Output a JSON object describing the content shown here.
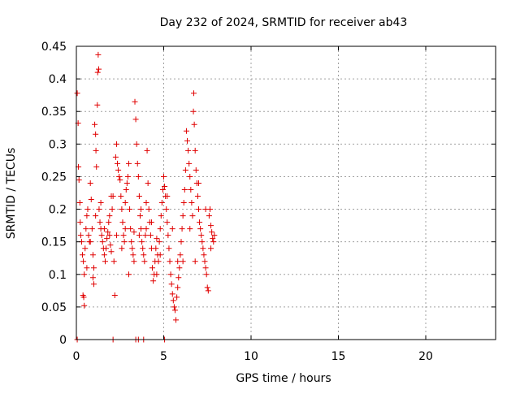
{
  "chart_data": {
    "type": "scatter",
    "title": "Day 232 of 2024, SRMTID for receiver ab43",
    "xlabel": "GPS time / hours",
    "ylabel": "SRMTID / TECUs",
    "xlim": [
      0,
      24
    ],
    "ylim": [
      0,
      0.45
    ],
    "xticks": [
      0,
      5,
      10,
      15,
      20
    ],
    "xtick_labels": [
      "0",
      "5",
      "10",
      "15",
      "20"
    ],
    "yticks": [
      0,
      0.05,
      0.1,
      0.15,
      0.2,
      0.25,
      0.3,
      0.35,
      0.4,
      0.45
    ],
    "ytick_labels": [
      "0",
      "0.05",
      "0.1",
      "0.15",
      "0.2",
      "0.25",
      "0.3",
      "0.35",
      "0.4",
      "0.45"
    ],
    "grid": true,
    "marker": "plus",
    "series": [
      {
        "name": "SRMTID",
        "color": "#e00000",
        "points": [
          [
            0.05,
            0.378
          ],
          [
            0.1,
            0.332
          ],
          [
            0.12,
            0.265
          ],
          [
            0.15,
            0.245
          ],
          [
            0.2,
            0.21
          ],
          [
            0.22,
            0.18
          ],
          [
            0.25,
            0.16
          ],
          [
            0.3,
            0.15
          ],
          [
            0.35,
            0.13
          ],
          [
            0.4,
            0.12
          ],
          [
            0.45,
            0.1
          ],
          [
            0.38,
            0.068
          ],
          [
            0.42,
            0.065
          ],
          [
            0.45,
            0.052
          ],
          [
            0.5,
            0.14
          ],
          [
            0.55,
            0.17
          ],
          [
            0.6,
            0.19
          ],
          [
            0.65,
            0.2
          ],
          [
            0.7,
            0.16
          ],
          [
            0.75,
            0.15
          ],
          [
            0.8,
            0.24
          ],
          [
            0.85,
            0.215
          ],
          [
            0.9,
            0.17
          ],
          [
            0.95,
            0.13
          ],
          [
            1.0,
            0.11
          ],
          [
            1.0,
            0.085
          ],
          [
            0.95,
            0.095
          ],
          [
            1.05,
            0.33
          ],
          [
            1.1,
            0.315
          ],
          [
            1.12,
            0.29
          ],
          [
            1.15,
            0.265
          ],
          [
            1.2,
            0.36
          ],
          [
            1.22,
            0.41
          ],
          [
            1.25,
            0.437
          ],
          [
            1.28,
            0.415
          ],
          [
            1.3,
            0.2
          ],
          [
            1.35,
            0.18
          ],
          [
            1.4,
            0.17
          ],
          [
            1.45,
            0.16
          ],
          [
            1.5,
            0.15
          ],
          [
            1.55,
            0.14
          ],
          [
            1.6,
            0.13
          ],
          [
            1.65,
            0.12
          ],
          [
            1.7,
            0.14
          ],
          [
            1.75,
            0.155
          ],
          [
            1.8,
            0.165
          ],
          [
            1.85,
            0.18
          ],
          [
            1.9,
            0.16
          ],
          [
            1.95,
            0.145
          ],
          [
            2.0,
            0.135
          ],
          [
            2.05,
            0.2
          ],
          [
            2.1,
            0.22
          ],
          [
            2.15,
            0.12
          ],
          [
            2.2,
            0.068
          ],
          [
            2.25,
            0.28
          ],
          [
            2.3,
            0.3
          ],
          [
            2.35,
            0.27
          ],
          [
            2.4,
            0.26
          ],
          [
            2.45,
            0.25
          ],
          [
            2.5,
            0.245
          ],
          [
            2.55,
            0.22
          ],
          [
            2.6,
            0.2
          ],
          [
            2.65,
            0.18
          ],
          [
            2.7,
            0.16
          ],
          [
            2.75,
            0.15
          ],
          [
            2.8,
            0.17
          ],
          [
            2.85,
            0.23
          ],
          [
            2.9,
            0.24
          ],
          [
            2.95,
            0.25
          ],
          [
            3.0,
            0.27
          ],
          [
            3.05,
            0.2
          ],
          [
            3.1,
            0.17
          ],
          [
            3.15,
            0.15
          ],
          [
            3.2,
            0.14
          ],
          [
            3.25,
            0.13
          ],
          [
            3.3,
            0.12
          ],
          [
            3.35,
            0.365
          ],
          [
            3.4,
            0.338
          ],
          [
            3.45,
            0.3
          ],
          [
            3.5,
            0.27
          ],
          [
            3.55,
            0.25
          ],
          [
            3.6,
            0.22
          ],
          [
            3.65,
            0.19
          ],
          [
            3.7,
            0.17
          ],
          [
            3.75,
            0.15
          ],
          [
            3.8,
            0.14
          ],
          [
            3.85,
            0.13
          ],
          [
            3.9,
            0.12
          ],
          [
            3.95,
            0.16
          ],
          [
            4.0,
            0.17
          ],
          [
            4.05,
            0.29
          ],
          [
            4.1,
            0.24
          ],
          [
            4.15,
            0.2
          ],
          [
            4.2,
            0.18
          ],
          [
            4.25,
            0.16
          ],
          [
            4.3,
            0.14
          ],
          [
            4.35,
            0.11
          ],
          [
            4.4,
            0.09
          ],
          [
            4.45,
            0.1
          ],
          [
            4.5,
            0.12
          ],
          [
            4.55,
            0.14
          ],
          [
            4.6,
            0.155
          ],
          [
            4.65,
            0.13
          ],
          [
            4.7,
            0.12
          ],
          [
            4.75,
            0.15
          ],
          [
            4.8,
            0.17
          ],
          [
            4.85,
            0.19
          ],
          [
            4.9,
            0.21
          ],
          [
            4.95,
            0.23
          ],
          [
            5.0,
            0.25
          ],
          [
            5.05,
            0.235
          ],
          [
            5.1,
            0.22
          ],
          [
            5.15,
            0.2
          ],
          [
            5.2,
            0.18
          ],
          [
            5.25,
            0.16
          ],
          [
            5.3,
            0.14
          ],
          [
            5.35,
            0.12
          ],
          [
            5.4,
            0.1
          ],
          [
            5.45,
            0.085
          ],
          [
            5.5,
            0.07
          ],
          [
            5.55,
            0.06
          ],
          [
            5.6,
            0.05
          ],
          [
            5.65,
            0.045
          ],
          [
            5.7,
            0.03
          ],
          [
            5.75,
            0.065
          ],
          [
            5.8,
            0.08
          ],
          [
            5.85,
            0.095
          ],
          [
            5.9,
            0.11
          ],
          [
            5.95,
            0.13
          ],
          [
            6.0,
            0.15
          ],
          [
            6.05,
            0.17
          ],
          [
            6.1,
            0.19
          ],
          [
            6.15,
            0.21
          ],
          [
            6.2,
            0.23
          ],
          [
            6.25,
            0.26
          ],
          [
            6.3,
            0.32
          ],
          [
            6.35,
            0.305
          ],
          [
            6.4,
            0.29
          ],
          [
            6.45,
            0.27
          ],
          [
            6.5,
            0.25
          ],
          [
            6.55,
            0.23
          ],
          [
            6.6,
            0.21
          ],
          [
            6.65,
            0.19
          ],
          [
            6.7,
            0.35
          ],
          [
            6.72,
            0.378
          ],
          [
            6.75,
            0.33
          ],
          [
            6.8,
            0.29
          ],
          [
            6.85,
            0.26
          ],
          [
            6.9,
            0.24
          ],
          [
            6.95,
            0.22
          ],
          [
            7.0,
            0.2
          ],
          [
            7.05,
            0.18
          ],
          [
            7.1,
            0.17
          ],
          [
            7.15,
            0.16
          ],
          [
            7.2,
            0.15
          ],
          [
            7.25,
            0.14
          ],
          [
            7.3,
            0.13
          ],
          [
            7.35,
            0.12
          ],
          [
            7.4,
            0.11
          ],
          [
            7.45,
            0.1
          ],
          [
            7.5,
            0.08
          ],
          [
            7.55,
            0.075
          ],
          [
            7.6,
            0.19
          ],
          [
            7.65,
            0.2
          ],
          [
            7.7,
            0.175
          ],
          [
            7.75,
            0.165
          ],
          [
            7.8,
            0.155
          ],
          [
            7.85,
            0.15
          ],
          [
            7.9,
            0.16
          ],
          [
            0.6,
            0.11
          ],
          [
            0.8,
            0.15
          ],
          [
            1.1,
            0.19
          ],
          [
            1.4,
            0.21
          ],
          [
            1.6,
            0.17
          ],
          [
            1.9,
            0.19
          ],
          [
            2.3,
            0.16
          ],
          [
            2.6,
            0.14
          ],
          [
            3.0,
            0.1
          ],
          [
            3.3,
            0.165
          ],
          [
            3.6,
            0.16
          ],
          [
            4.0,
            0.21
          ],
          [
            4.3,
            0.18
          ],
          [
            4.8,
            0.13
          ],
          [
            5.2,
            0.22
          ],
          [
            5.5,
            0.17
          ],
          [
            6.1,
            0.12
          ],
          [
            6.5,
            0.17
          ],
          [
            7.0,
            0.24
          ],
          [
            7.4,
            0.2
          ],
          [
            7.7,
            0.14
          ],
          [
            2.0,
            0.22
          ],
          [
            2.8,
            0.21
          ],
          [
            3.7,
            0.2
          ],
          [
            4.6,
            0.1
          ],
          [
            5.8,
            0.12
          ],
          [
            6.8,
            0.12
          ],
          [
            0.05,
            0.0
          ],
          [
            2.1,
            0.0
          ],
          [
            3.4,
            0.0
          ],
          [
            3.55,
            0.0
          ],
          [
            3.85,
            0.0
          ],
          [
            5.05,
            0.0
          ]
        ]
      }
    ]
  }
}
